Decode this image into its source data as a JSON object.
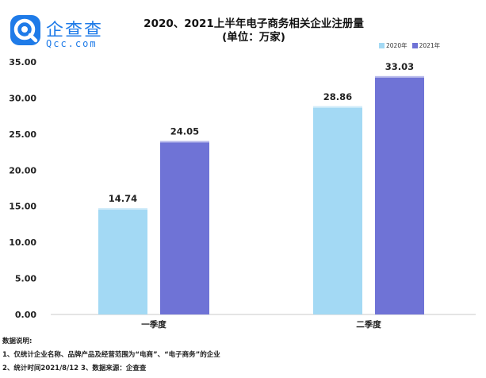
{
  "logo": {
    "cn": "企查查",
    "en": "Qcc.com"
  },
  "chart_data": {
    "type": "bar",
    "title": "2020、2021上半年电子商务相关企业注册量",
    "subtitle": "(单位：万家)",
    "categories": [
      "一季度",
      "二季度"
    ],
    "series": [
      {
        "name": "2020年",
        "values": [
          14.74,
          28.86
        ],
        "color": "#a3d9f4"
      },
      {
        "name": "2021年",
        "values": [
          24.05,
          33.03
        ],
        "color": "#6f73d6"
      }
    ],
    "ylim": [
      0,
      35
    ],
    "yticks": [
      "0.00",
      "5.00",
      "10.00",
      "15.00",
      "20.00",
      "25.00",
      "30.00",
      "35.00"
    ],
    "value_labels": [
      "14.74",
      "24.05",
      "28.86",
      "33.03"
    ],
    "legend_position": "top-right",
    "grid": false
  },
  "notes": {
    "heading": "数据说明:",
    "line1": "1、仅统计企业名称、品牌产品及经营范围为“电商”、“电子商务”的企业",
    "line2": "2、统计时间2021/8/12   3、数据来源：企查查"
  }
}
